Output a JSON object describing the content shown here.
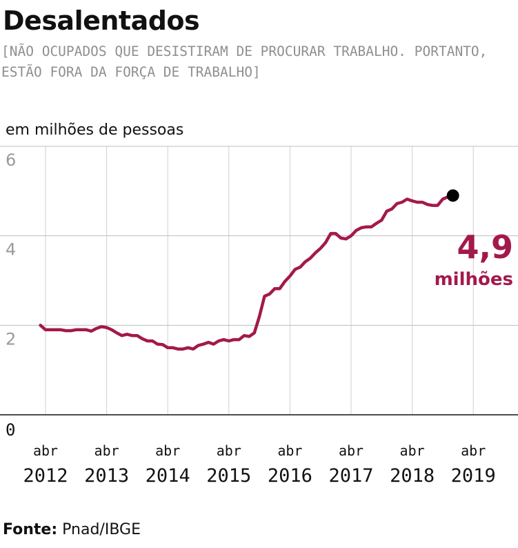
{
  "header": {
    "title": "Desalentados",
    "subtitle": "[NÃO OCUPADOS QUE DESISTIRAM DE PROCURAR TRABALHO. PORTANTO, ESTÃO FORA DA FORÇA DE TRABALHO]"
  },
  "footer": {
    "source_label": "Fonte:",
    "source_value": " Pnad/IBGE"
  },
  "colors": {
    "line": "#a3194c",
    "marker": "#000000",
    "annotation": "#a3194c",
    "grid": "#cfcfcf",
    "baseline": "#111111"
  },
  "chart_data": {
    "type": "line",
    "title": "Desalentados",
    "ylabel": "em milhões de pessoas",
    "ylim": [
      0,
      6
    ],
    "yticks": [
      0,
      2,
      4,
      6
    ],
    "grid": "vertical and horizontal",
    "x_tick_labels": [
      {
        "month": "abr",
        "year": "2012"
      },
      {
        "month": "abr",
        "year": "2013"
      },
      {
        "month": "abr",
        "year": "2014"
      },
      {
        "month": "abr",
        "year": "2015"
      },
      {
        "month": "abr",
        "year": "2016"
      },
      {
        "month": "abr",
        "year": "2017"
      },
      {
        "month": "abr",
        "year": "2018"
      },
      {
        "month": "abr",
        "year": "2019"
      }
    ],
    "x_start": "2012-03",
    "series": [
      {
        "values": [
          2.0,
          1.9,
          1.9,
          1.9,
          1.9,
          1.88,
          1.88,
          1.9,
          1.9,
          1.9,
          1.87,
          1.93,
          1.97,
          1.95,
          1.9,
          1.83,
          1.77,
          1.8,
          1.77,
          1.77,
          1.7,
          1.65,
          1.65,
          1.58,
          1.57,
          1.5,
          1.5,
          1.47,
          1.47,
          1.5,
          1.47,
          1.55,
          1.58,
          1.62,
          1.58,
          1.65,
          1.68,
          1.65,
          1.68,
          1.68,
          1.77,
          1.75,
          1.83,
          2.2,
          2.65,
          2.7,
          2.82,
          2.82,
          2.98,
          3.1,
          3.25,
          3.3,
          3.42,
          3.5,
          3.62,
          3.72,
          3.85,
          4.05,
          4.05,
          3.95,
          3.93,
          4.0,
          4.12,
          4.18,
          4.2,
          4.2,
          4.28,
          4.35,
          4.55,
          4.6,
          4.72,
          4.75,
          4.82,
          4.78,
          4.75,
          4.75,
          4.7,
          4.68,
          4.68,
          4.82,
          4.87,
          4.9
        ]
      }
    ],
    "highlight": {
      "value_label": "4,9",
      "unit_label": "milhões"
    }
  }
}
